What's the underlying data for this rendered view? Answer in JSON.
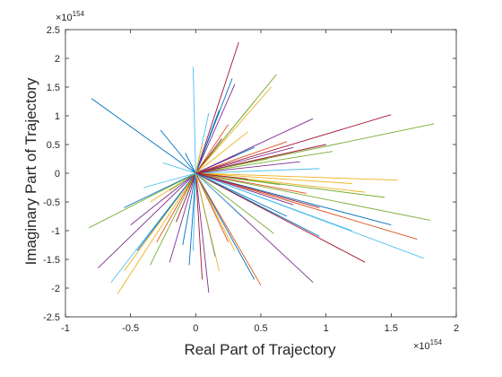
{
  "chart_data": {
    "type": "line",
    "xlabel": "Real Part of Trajectory",
    "ylabel": "Imaginary Part of Trajectory",
    "x_exponent": {
      "base": "×10",
      "power": "154"
    },
    "y_exponent": {
      "base": "×10",
      "power": "154"
    },
    "xlim": [
      -1,
      2
    ],
    "ylim": [
      -2.5,
      2.5
    ],
    "xticks": [
      -1,
      -0.5,
      0,
      0.5,
      1,
      1.5,
      2
    ],
    "yticks": [
      -2.5,
      -2,
      -1.5,
      -1,
      -0.5,
      0,
      0.5,
      1,
      1.5,
      2,
      2.5
    ],
    "xtick_labels": [
      "-1",
      "-0.5",
      "0",
      "0.5",
      "1",
      "1.5",
      "2"
    ],
    "ytick_labels": [
      "-2.5",
      "-2",
      "-1.5",
      "-1",
      "-0.5",
      "0",
      "0.5",
      "1",
      "1.5",
      "2",
      "2.5"
    ],
    "origin": [
      0,
      0
    ],
    "grid": false,
    "palette": [
      "#0072BD",
      "#D95319",
      "#EDB120",
      "#7E2F8E",
      "#77AC30",
      "#4DBEEE",
      "#A2142F"
    ],
    "rays": [
      {
        "end": [
          -0.8,
          1.3
        ],
        "color": "#0072BD"
      },
      {
        "end": [
          -0.27,
          0.75
        ],
        "color": "#0072BD"
      },
      {
        "end": [
          -0.02,
          1.85
        ],
        "color": "#4DBEEE"
      },
      {
        "end": [
          0.33,
          2.28
        ],
        "color": "#A2142F"
      },
      {
        "end": [
          0.28,
          1.65
        ],
        "color": "#0072BD"
      },
      {
        "end": [
          0.3,
          1.55
        ],
        "color": "#7E2F8E"
      },
      {
        "end": [
          0.62,
          1.72
        ],
        "color": "#77AC30"
      },
      {
        "end": [
          0.58,
          1.5
        ],
        "color": "#EDB120"
      },
      {
        "end": [
          0.18,
          1.1
        ],
        "color": "#0072BD"
      },
      {
        "end": [
          0.1,
          1.05
        ],
        "color": "#4DBEEE"
      },
      {
        "end": [
          0.45,
          1.25
        ],
        "color": "#77AC30"
      },
      {
        "end": [
          0.9,
          0.95
        ],
        "color": "#7E2F8E"
      },
      {
        "end": [
          1.5,
          1.02
        ],
        "color": "#A2142F"
      },
      {
        "end": [
          1.83,
          0.86
        ],
        "color": "#77AC30"
      },
      {
        "end": [
          1.05,
          0.38
        ],
        "color": "#77AC30"
      },
      {
        "end": [
          0.7,
          0.55
        ],
        "color": "#D95319"
      },
      {
        "end": [
          0.45,
          0.45
        ],
        "color": "#0072BD"
      },
      {
        "end": [
          0.95,
          0.08
        ],
        "color": "#4DBEEE"
      },
      {
        "end": [
          1.55,
          -0.12
        ],
        "color": "#EDB120"
      },
      {
        "end": [
          1.3,
          -0.33
        ],
        "color": "#EDB120"
      },
      {
        "end": [
          1.2,
          -0.18
        ],
        "color": "#EDB120"
      },
      {
        "end": [
          1.45,
          -0.42
        ],
        "color": "#77AC30"
      },
      {
        "end": [
          1.8,
          -0.82
        ],
        "color": "#77AC30"
      },
      {
        "end": [
          1.5,
          -0.9
        ],
        "color": "#0072BD"
      },
      {
        "end": [
          1.7,
          -1.15
        ],
        "color": "#D95319"
      },
      {
        "end": [
          1.75,
          -1.48
        ],
        "color": "#4DBEEE"
      },
      {
        "end": [
          1.2,
          -1.0
        ],
        "color": "#4DBEEE"
      },
      {
        "end": [
          0.95,
          -1.1
        ],
        "color": "#0072BD"
      },
      {
        "end": [
          1.3,
          -1.55
        ],
        "color": "#A2142F"
      },
      {
        "end": [
          0.9,
          -1.9
        ],
        "color": "#7E2F8E"
      },
      {
        "end": [
          0.5,
          -1.95
        ],
        "color": "#D95319"
      },
      {
        "end": [
          0.45,
          -1.85
        ],
        "color": "#0072BD"
      },
      {
        "end": [
          0.6,
          -1.05
        ],
        "color": "#77AC30"
      },
      {
        "end": [
          0.3,
          -1.35
        ],
        "color": "#EDB120"
      },
      {
        "end": [
          0.1,
          -2.08
        ],
        "color": "#7E2F8E"
      },
      {
        "end": [
          0.05,
          -1.85
        ],
        "color": "#A2142F"
      },
      {
        "end": [
          -0.05,
          -1.6
        ],
        "color": "#0072BD"
      },
      {
        "end": [
          -0.2,
          -1.55
        ],
        "color": "#7E2F8E"
      },
      {
        "end": [
          -0.35,
          -1.6
        ],
        "color": "#77AC30"
      },
      {
        "end": [
          -0.55,
          -1.7
        ],
        "color": "#EDB120"
      },
      {
        "end": [
          -0.6,
          -2.1
        ],
        "color": "#EDB120"
      },
      {
        "end": [
          -0.65,
          -1.9
        ],
        "color": "#4DBEEE"
      },
      {
        "end": [
          -0.75,
          -1.65
        ],
        "color": "#7E2F8E"
      },
      {
        "end": [
          -0.45,
          -1.35
        ],
        "color": "#0072BD"
      },
      {
        "end": [
          -0.3,
          -1.2
        ],
        "color": "#D95319"
      },
      {
        "end": [
          -0.5,
          -0.9
        ],
        "color": "#7E2F8E"
      },
      {
        "end": [
          -0.82,
          -0.95
        ],
        "color": "#77AC30"
      },
      {
        "end": [
          -0.55,
          -0.6
        ],
        "color": "#0072BD"
      },
      {
        "end": [
          -0.35,
          -0.5
        ],
        "color": "#EDB120"
      },
      {
        "end": [
          -0.4,
          -0.25
        ],
        "color": "#4DBEEE"
      },
      {
        "end": [
          -0.2,
          -0.3
        ],
        "color": "#77AC30"
      },
      {
        "end": [
          -0.15,
          -0.85
        ],
        "color": "#A2142F"
      },
      {
        "end": [
          -0.1,
          -1.25
        ],
        "color": "#0072BD"
      },
      {
        "end": [
          0.15,
          -1.45
        ],
        "color": "#0072BD"
      },
      {
        "end": [
          0.25,
          -1.2
        ],
        "color": "#D95319"
      },
      {
        "end": [
          0.35,
          -0.75
        ],
        "color": "#4DBEEE"
      },
      {
        "end": [
          0.75,
          -0.55
        ],
        "color": "#7E2F8E"
      },
      {
        "end": [
          0.85,
          -0.35
        ],
        "color": "#D95319"
      },
      {
        "end": [
          0.65,
          -0.2
        ],
        "color": "#77AC30"
      },
      {
        "end": [
          0.4,
          -0.1
        ],
        "color": "#A2142F"
      },
      {
        "end": [
          0.3,
          0.3
        ],
        "color": "#7E2F8E"
      },
      {
        "end": [
          0.2,
          0.6
        ],
        "color": "#A2142F"
      },
      {
        "end": [
          0.05,
          0.5
        ],
        "color": "#EDB120"
      },
      {
        "end": [
          -0.08,
          0.35
        ],
        "color": "#0072BD"
      },
      {
        "end": [
          0.55,
          0.25
        ],
        "color": "#77AC30"
      },
      {
        "end": [
          0.8,
          0.2
        ],
        "color": "#7E2F8E"
      },
      {
        "end": [
          0.25,
          0.85
        ],
        "color": "#D95319"
      },
      {
        "end": [
          -0.25,
          0.18
        ],
        "color": "#4DBEEE"
      },
      {
        "end": [
          0.95,
          -0.6
        ],
        "color": "#A2142F"
      },
      {
        "end": [
          0.7,
          -0.75
        ],
        "color": "#0072BD"
      },
      {
        "end": [
          0.18,
          -1.7
        ],
        "color": "#EDB120"
      },
      {
        "end": [
          -0.02,
          -1.35
        ],
        "color": "#4DBEEE"
      },
      {
        "end": [
          0.4,
          0.72
        ],
        "color": "#EDB120"
      },
      {
        "end": [
          0.75,
          0.45
        ],
        "color": "#7E2F8E"
      },
      {
        "end": [
          1.0,
          0.5
        ],
        "color": "#A2142F"
      }
    ]
  }
}
